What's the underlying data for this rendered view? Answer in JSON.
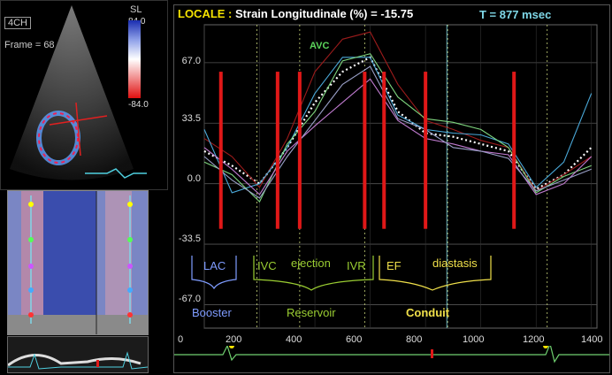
{
  "echo": {
    "view_tag": "4CH",
    "frame_label": "Frame = 68",
    "colorbar_title": "SL",
    "colorbar_max": "84.0",
    "colorbar_min": "-84.0",
    "colorbar_colors": [
      "#1a2db0",
      "#ffffff",
      "#e01010"
    ]
  },
  "plot": {
    "title_prefix": "LOCALE :",
    "title_text": "Strain Longitudinale (%) = -15.75",
    "time_text": "T = 877 msec",
    "y_ticks": [
      "67.0",
      "33.5",
      "0.0",
      "-33.5",
      "-67.0"
    ],
    "x_ticks": [
      "0",
      "200",
      "400",
      "600",
      "800",
      "1000",
      "1200",
      "1400"
    ],
    "avc_label": "AVC",
    "phases": {
      "lac": "LAC",
      "booster": "Booster",
      "ivc": "IVC",
      "ejection": "ejection",
      "ivr": "IVR",
      "reservoir": "Reservoir",
      "ef": "EF",
      "diastasis": "diastasis",
      "conduit": "Conduit"
    },
    "colors": {
      "title_yellow": "#f5e300",
      "time_cyan": "#7fd8e8",
      "red_marker": "#e01818",
      "avc_green": "#5cd65c",
      "lac_blue": "#7f9cff",
      "ivc_green": "#9acd32",
      "ef_yellow": "#f0e04a"
    }
  },
  "chart_data": {
    "type": "line",
    "xlabel": "",
    "ylabel": "",
    "xlim": [
      0,
      1420
    ],
    "ylim": [
      -80,
      88
    ],
    "cursor_time": 877,
    "event_lines_x": [
      190,
      345,
      580,
      880,
      1240
    ],
    "red_markers_x": [
      60,
      265,
      345,
      580,
      650,
      800,
      1120
    ],
    "series": [
      {
        "color": "#ffffff",
        "dotted": true,
        "x": [
          0,
          100,
          200,
          300,
          400,
          500,
          600,
          700,
          800,
          900,
          1000,
          1100,
          1200,
          1300,
          1400
        ],
        "y": [
          18,
          10,
          0,
          20,
          45,
          62,
          70,
          40,
          28,
          26,
          22,
          18,
          -3,
          5,
          20
        ]
      },
      {
        "color": "#9b1b1b",
        "x": [
          0,
          100,
          200,
          300,
          400,
          500,
          600,
          700,
          800,
          900,
          1000,
          1100,
          1200,
          1300,
          1400
        ],
        "y": [
          25,
          15,
          -2,
          25,
          62,
          80,
          84,
          55,
          35,
          30,
          24,
          20,
          -4,
          5,
          15
        ]
      },
      {
        "color": "#4aa8d8",
        "x": [
          0,
          100,
          200,
          300,
          400,
          500,
          600,
          700,
          800,
          900,
          1000,
          1100,
          1200,
          1300,
          1400
        ],
        "y": [
          30,
          -5,
          0,
          20,
          50,
          70,
          70,
          38,
          30,
          28,
          27,
          22,
          -2,
          12,
          50
        ]
      },
      {
        "color": "#7fd67f",
        "x": [
          0,
          100,
          200,
          300,
          400,
          500,
          600,
          700,
          800,
          900,
          1000,
          1100,
          1200,
          1300,
          1400
        ],
        "y": [
          12,
          5,
          -10,
          22,
          40,
          68,
          72,
          48,
          36,
          34,
          30,
          20,
          -5,
          4,
          10
        ]
      },
      {
        "color": "#c07bd0",
        "x": [
          0,
          100,
          200,
          300,
          400,
          500,
          600,
          700,
          800,
          900,
          1000,
          1100,
          1200,
          1300,
          1400
        ],
        "y": [
          20,
          8,
          -6,
          18,
          32,
          45,
          58,
          35,
          25,
          22,
          18,
          16,
          -6,
          0,
          15
        ]
      },
      {
        "color": "#9aa0c8",
        "x": [
          0,
          100,
          200,
          300,
          400,
          500,
          600,
          700,
          800,
          900,
          1000,
          1100,
          1200,
          1300,
          1400
        ],
        "y": [
          15,
          2,
          -8,
          15,
          35,
          55,
          65,
          36,
          30,
          20,
          18,
          14,
          -4,
          2,
          8
        ]
      }
    ]
  }
}
